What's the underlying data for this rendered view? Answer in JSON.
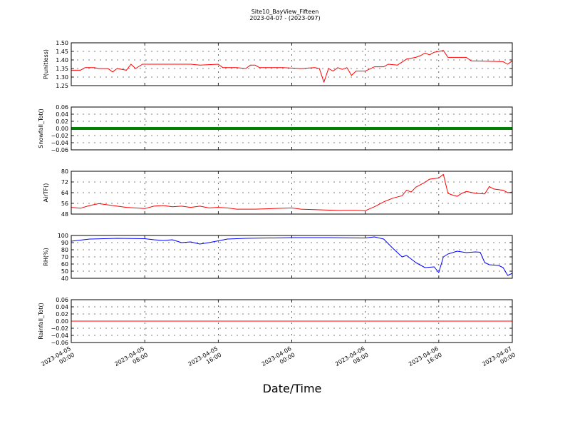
{
  "chart_data": {
    "type": "line",
    "title": "Site10_BayView_Fifteen",
    "subtitle": "2023-04-07 - (2023-097)",
    "xlabel": "Date/Time",
    "x_ticks": [
      {
        "l1": "2023-04-05",
        "l2": "00:00"
      },
      {
        "l1": "2023-04-05",
        "l2": "08:00"
      },
      {
        "l1": "2023-04-05",
        "l2": "16:00"
      },
      {
        "l1": "2023-04-06",
        "l2": "00:00"
      },
      {
        "l1": "2023-04-06",
        "l2": "08:00"
      },
      {
        "l1": "2023-04-06",
        "l2": "16:00"
      },
      {
        "l1": "2023-04-07",
        "l2": "00:00"
      }
    ],
    "xlim": [
      "2023-04-05 00:00",
      "2023-04-07 00:00"
    ],
    "grid": true,
    "panels": [
      {
        "ylabel": "P(unitless)",
        "ylim": [
          1.25,
          1.5
        ],
        "yticks": [
          "1.25",
          "1.30",
          "1.35",
          "1.40",
          "1.45",
          "1.50"
        ],
        "color": "#ff0000",
        "series": [
          {
            "x": "2023-04-05 00:00",
            "y": 1.34
          },
          {
            "x": "2023-04-05 01:00",
            "y": 1.34
          },
          {
            "x": "2023-04-05 01:30",
            "y": 1.355
          },
          {
            "x": "2023-04-05 02:30",
            "y": 1.355
          },
          {
            "x": "2023-04-05 03:00",
            "y": 1.35
          },
          {
            "x": "2023-04-05 04:00",
            "y": 1.35
          },
          {
            "x": "2023-04-05 04:30",
            "y": 1.33
          },
          {
            "x": "2023-04-05 05:00",
            "y": 1.35
          },
          {
            "x": "2023-04-05 06:00",
            "y": 1.34
          },
          {
            "x": "2023-04-05 06:30",
            "y": 1.375
          },
          {
            "x": "2023-04-05 07:00",
            "y": 1.35
          },
          {
            "x": "2023-04-05 07:45",
            "y": 1.375
          },
          {
            "x": "2023-04-05 10:00",
            "y": 1.375
          },
          {
            "x": "2023-04-05 13:00",
            "y": 1.375
          },
          {
            "x": "2023-04-05 14:00",
            "y": 1.37
          },
          {
            "x": "2023-04-05 16:00",
            "y": 1.375
          },
          {
            "x": "2023-04-05 16:30",
            "y": 1.355
          },
          {
            "x": "2023-04-05 18:00",
            "y": 1.355
          },
          {
            "x": "2023-04-05 19:00",
            "y": 1.35
          },
          {
            "x": "2023-04-05 19:30",
            "y": 1.37
          },
          {
            "x": "2023-04-05 20:00",
            "y": 1.37
          },
          {
            "x": "2023-04-05 20:30",
            "y": 1.355
          },
          {
            "x": "2023-04-05 23:00",
            "y": 1.355
          },
          {
            "x": "2023-04-06 01:00",
            "y": 1.35
          },
          {
            "x": "2023-04-06 02:30",
            "y": 1.355
          },
          {
            "x": "2023-04-06 03:00",
            "y": 1.35
          },
          {
            "x": "2023-04-06 03:30",
            "y": 1.27
          },
          {
            "x": "2023-04-06 04:00",
            "y": 1.35
          },
          {
            "x": "2023-04-06 04:30",
            "y": 1.335
          },
          {
            "x": "2023-04-06 05:00",
            "y": 1.355
          },
          {
            "x": "2023-04-06 05:30",
            "y": 1.345
          },
          {
            "x": "2023-04-06 06:00",
            "y": 1.355
          },
          {
            "x": "2023-04-06 06:30",
            "y": 1.31
          },
          {
            "x": "2023-04-06 07:00",
            "y": 1.335
          },
          {
            "x": "2023-04-06 08:00",
            "y": 1.335
          },
          {
            "x": "2023-04-06 09:00",
            "y": 1.36
          },
          {
            "x": "2023-04-06 10:00",
            "y": 1.36
          },
          {
            "x": "2023-04-06 10:30",
            "y": 1.375
          },
          {
            "x": "2023-04-06 11:30",
            "y": 1.37
          },
          {
            "x": "2023-04-06 12:30",
            "y": 1.405
          },
          {
            "x": "2023-04-06 13:30",
            "y": 1.415
          },
          {
            "x": "2023-04-06 14:00",
            "y": 1.425
          },
          {
            "x": "2023-04-06 14:30",
            "y": 1.44
          },
          {
            "x": "2023-04-06 15:00",
            "y": 1.43
          },
          {
            "x": "2023-04-06 15:30",
            "y": 1.445
          },
          {
            "x": "2023-04-06 16:30",
            "y": 1.455
          },
          {
            "x": "2023-04-06 17:00",
            "y": 1.415
          },
          {
            "x": "2023-04-06 19:00",
            "y": 1.415
          },
          {
            "x": "2023-04-06 19:30",
            "y": 1.395
          },
          {
            "x": "2023-04-06 23:00",
            "y": 1.39
          },
          {
            "x": "2023-04-06 23:30",
            "y": 1.375
          },
          {
            "x": "2023-04-07 00:00",
            "y": 1.395
          }
        ]
      },
      {
        "ylabel": "Snowfall_Tot()",
        "ylim": [
          -0.06,
          0.06
        ],
        "yticks": [
          "−0.06",
          "−0.04",
          "−0.02",
          "0.00",
          "0.02",
          "0.04",
          "0.06"
        ],
        "color": "#008000",
        "series": [
          {
            "x": "2023-04-05 00:00",
            "y": 0.0
          },
          {
            "x": "2023-04-07 00:00",
            "y": 0.0
          }
        ]
      },
      {
        "ylabel": "AirTF()",
        "ylim": [
          45,
          80
        ],
        "yticks": [
          "48",
          "56",
          "64",
          "72",
          "80"
        ],
        "color": "#ff0000",
        "series": [
          {
            "x": "2023-04-05 00:00",
            "y": 50.5
          },
          {
            "x": "2023-04-05 01:00",
            "y": 49.8
          },
          {
            "x": "2023-04-05 02:00",
            "y": 52.0
          },
          {
            "x": "2023-04-05 03:00",
            "y": 53.5
          },
          {
            "x": "2023-04-05 04:00",
            "y": 52.5
          },
          {
            "x": "2023-04-05 05:00",
            "y": 51.5
          },
          {
            "x": "2023-04-05 06:00",
            "y": 50.5
          },
          {
            "x": "2023-04-05 07:00",
            "y": 50.0
          },
          {
            "x": "2023-04-05 08:00",
            "y": 49.5
          },
          {
            "x": "2023-04-05 09:00",
            "y": 51.5
          },
          {
            "x": "2023-04-05 10:00",
            "y": 52.0
          },
          {
            "x": "2023-04-05 11:00",
            "y": 51.0
          },
          {
            "x": "2023-04-05 12:00",
            "y": 51.5
          },
          {
            "x": "2023-04-05 13:00",
            "y": 50.5
          },
          {
            "x": "2023-04-05 14:00",
            "y": 51.5
          },
          {
            "x": "2023-04-05 15:00",
            "y": 50.0
          },
          {
            "x": "2023-04-05 16:00",
            "y": 50.5
          },
          {
            "x": "2023-04-05 17:00",
            "y": 50.0
          },
          {
            "x": "2023-04-05 18:00",
            "y": 49.0
          },
          {
            "x": "2023-04-05 20:00",
            "y": 49.0
          },
          {
            "x": "2023-04-05 22:00",
            "y": 49.5
          },
          {
            "x": "2023-04-06 00:00",
            "y": 50.0
          },
          {
            "x": "2023-04-06 01:00",
            "y": 49.0
          },
          {
            "x": "2023-04-06 03:00",
            "y": 48.5
          },
          {
            "x": "2023-04-06 05:00",
            "y": 48.0
          },
          {
            "x": "2023-04-06 07:00",
            "y": 48.0
          },
          {
            "x": "2023-04-06 08:00",
            "y": 47.8
          },
          {
            "x": "2023-04-06 09:00",
            "y": 51.0
          },
          {
            "x": "2023-04-06 10:00",
            "y": 55.0
          },
          {
            "x": "2023-04-06 11:00",
            "y": 58.0
          },
          {
            "x": "2023-04-06 12:00",
            "y": 60.0
          },
          {
            "x": "2023-04-06 12:30",
            "y": 64.5
          },
          {
            "x": "2023-04-06 13:00",
            "y": 63.0
          },
          {
            "x": "2023-04-06 13:30",
            "y": 67.0
          },
          {
            "x": "2023-04-06 14:30",
            "y": 71.0
          },
          {
            "x": "2023-04-06 15:00",
            "y": 73.5
          },
          {
            "x": "2023-04-06 16:00",
            "y": 74.5
          },
          {
            "x": "2023-04-06 16:30",
            "y": 77.5
          },
          {
            "x": "2023-04-06 17:00",
            "y": 62.0
          },
          {
            "x": "2023-04-06 17:30",
            "y": 60.5
          },
          {
            "x": "2023-04-06 18:00",
            "y": 59.5
          },
          {
            "x": "2023-04-06 18:30",
            "y": 62.0
          },
          {
            "x": "2023-04-06 19:00",
            "y": 63.5
          },
          {
            "x": "2023-04-06 20:00",
            "y": 62.0
          },
          {
            "x": "2023-04-06 21:00",
            "y": 61.5
          },
          {
            "x": "2023-04-06 21:30",
            "y": 67.5
          },
          {
            "x": "2023-04-06 22:00",
            "y": 65.5
          },
          {
            "x": "2023-04-06 23:00",
            "y": 64.5
          },
          {
            "x": "2023-04-06 23:30",
            "y": 62.5
          },
          {
            "x": "2023-04-07 00:00",
            "y": 63.0
          }
        ]
      },
      {
        "ylabel": "RH(%)",
        "ylim": [
          40,
          100
        ],
        "yticks": [
          "40",
          "50",
          "60",
          "70",
          "80",
          "90",
          "100"
        ],
        "color": "#0000ff",
        "series": [
          {
            "x": "2023-04-05 00:00",
            "y": 92.0
          },
          {
            "x": "2023-04-05 02:00",
            "y": 95.0
          },
          {
            "x": "2023-04-05 05:00",
            "y": 96.0
          },
          {
            "x": "2023-04-05 08:00",
            "y": 95.5
          },
          {
            "x": "2023-04-05 09:00",
            "y": 94.0
          },
          {
            "x": "2023-04-05 10:00",
            "y": 93.0
          },
          {
            "x": "2023-04-05 11:00",
            "y": 94.0
          },
          {
            "x": "2023-04-05 12:00",
            "y": 90.0
          },
          {
            "x": "2023-04-05 13:00",
            "y": 91.0
          },
          {
            "x": "2023-04-05 14:00",
            "y": 88.0
          },
          {
            "x": "2023-04-05 15:00",
            "y": 90.0
          },
          {
            "x": "2023-04-05 16:00",
            "y": 92.5
          },
          {
            "x": "2023-04-05 17:00",
            "y": 95.0
          },
          {
            "x": "2023-04-05 19:00",
            "y": 96.0
          },
          {
            "x": "2023-04-06 00:00",
            "y": 97.0
          },
          {
            "x": "2023-04-06 04:00",
            "y": 97.0
          },
          {
            "x": "2023-04-06 08:00",
            "y": 96.5
          },
          {
            "x": "2023-04-06 09:00",
            "y": 98.0
          },
          {
            "x": "2023-04-06 10:00",
            "y": 95.0
          },
          {
            "x": "2023-04-06 11:00",
            "y": 82.0
          },
          {
            "x": "2023-04-06 12:00",
            "y": 70.0
          },
          {
            "x": "2023-04-06 12:30",
            "y": 72.0
          },
          {
            "x": "2023-04-06 13:30",
            "y": 62.0
          },
          {
            "x": "2023-04-06 14:30",
            "y": 55.0
          },
          {
            "x": "2023-04-06 15:30",
            "y": 56.0
          },
          {
            "x": "2023-04-06 16:00",
            "y": 48.0
          },
          {
            "x": "2023-04-06 16:30",
            "y": 70.0
          },
          {
            "x": "2023-04-06 17:00",
            "y": 74.0
          },
          {
            "x": "2023-04-06 18:00",
            "y": 78.0
          },
          {
            "x": "2023-04-06 19:00",
            "y": 76.0
          },
          {
            "x": "2023-04-06 20:00",
            "y": 77.0
          },
          {
            "x": "2023-04-06 20:30",
            "y": 76.5
          },
          {
            "x": "2023-04-06 21:00",
            "y": 62.0
          },
          {
            "x": "2023-04-06 21:30",
            "y": 59.0
          },
          {
            "x": "2023-04-06 22:30",
            "y": 58.0
          },
          {
            "x": "2023-04-06 23:00",
            "y": 55.0
          },
          {
            "x": "2023-04-06 23:30",
            "y": 44.0
          },
          {
            "x": "2023-04-07 00:00",
            "y": 47.0
          }
        ]
      },
      {
        "ylabel": "Rainfall_Tot()",
        "ylim": [
          -0.06,
          0.06
        ],
        "yticks": [
          "−0.06",
          "−0.04",
          "−0.02",
          "0.00",
          "0.02",
          "0.04",
          "0.06"
        ],
        "color": "#ff0000",
        "series": [
          {
            "x": "2023-04-05 00:00",
            "y": 0.0
          },
          {
            "x": "2023-04-07 00:00",
            "y": 0.0
          }
        ]
      }
    ]
  }
}
